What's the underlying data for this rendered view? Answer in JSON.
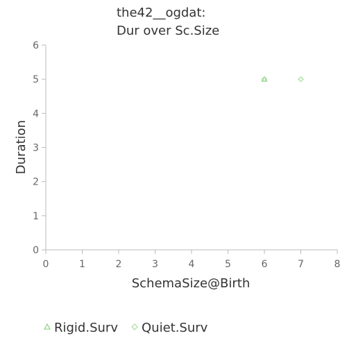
{
  "chart_data": {
    "type": "scatter",
    "title_lines": [
      "the42__ogdat:",
      "Dur over Sc.Size"
    ],
    "xlabel": "SchemaSize@Birth",
    "ylabel": "Duration",
    "xlim": [
      0,
      8
    ],
    "ylim": [
      0,
      6
    ],
    "xticks": [
      "0",
      "1",
      "2",
      "3",
      "4",
      "5",
      "6",
      "7",
      "8"
    ],
    "yticks": [
      "0",
      "1",
      "2",
      "3",
      "4",
      "5",
      "6"
    ],
    "grid": false,
    "legend_position": "bottom-left",
    "series": [
      {
        "name": "Rigid.Surv",
        "marker": "triangle",
        "color": "#8fd18a",
        "points": [
          [
            6,
            5
          ]
        ]
      },
      {
        "name": "Quiet.Surv",
        "marker": "diamond",
        "color": "#a8dca0",
        "points": [
          [
            6,
            5
          ],
          [
            7,
            5
          ]
        ]
      }
    ]
  }
}
